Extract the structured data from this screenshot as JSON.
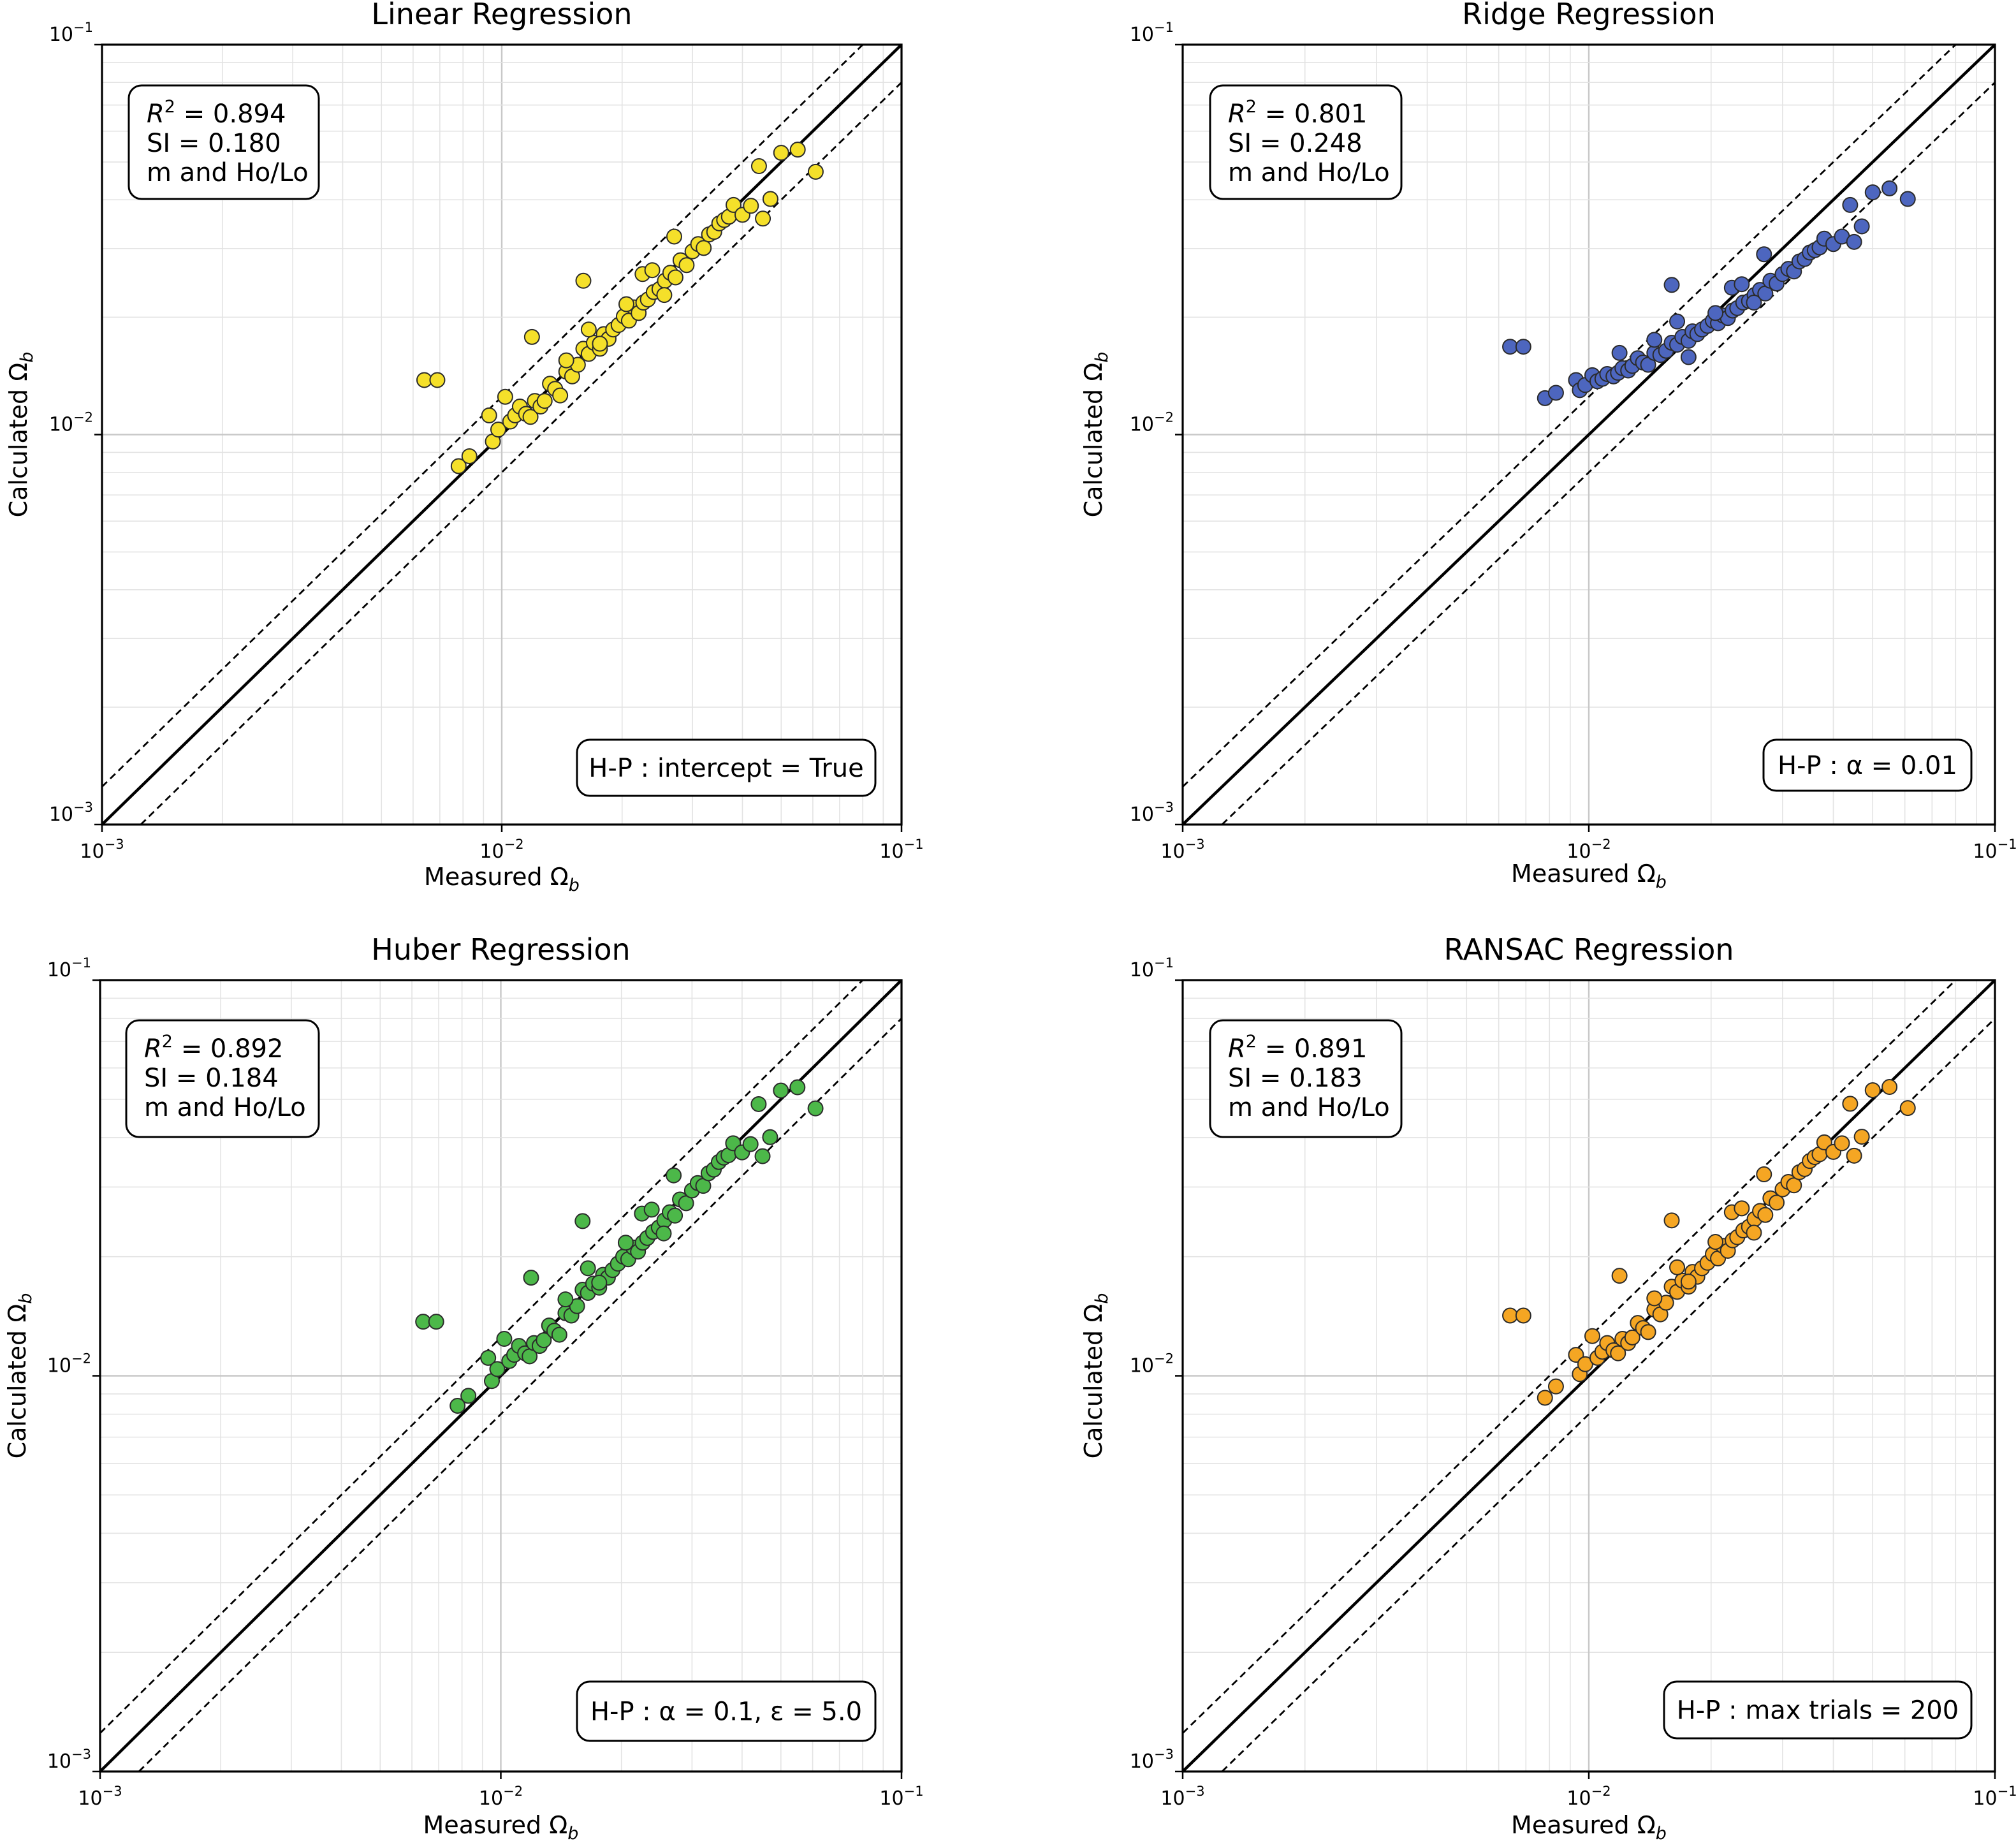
{
  "figure": {
    "x_label": "Measured",
    "y_label": "Calculated",
    "symbol": "Ω",
    "subscript": "b"
  },
  "chart_data": [
    {
      "type": "scatter",
      "title": "Linear Regression",
      "xlabel": "Measured Ωb",
      "ylabel": "Calculated Ωb",
      "xscale": "log",
      "yscale": "log",
      "xlim": [
        0.001,
        0.1
      ],
      "ylim": [
        0.001,
        0.1
      ],
      "x_tick_labels": [
        "10",
        "10",
        "10"
      ],
      "x_tick_exponents": [
        "−3",
        "−2",
        "−1"
      ],
      "y_tick_labels": [
        "10",
        "10",
        "10"
      ],
      "y_tick_exponents": [
        "−3",
        "−2",
        "−1"
      ],
      "grid": "major and minor",
      "reference_lines": [
        "1:1 solid",
        "upper dashed bound",
        "lower dashed bound"
      ],
      "stats": {
        "r2_label": "R",
        "r2_value": "= 0.894",
        "si": "SI  = 0.180",
        "inputs": "m and Ho/Lo"
      },
      "hyperparameter": {
        "prefix": "H-P : ",
        "text": "intercept = True"
      },
      "marker_color": "#f5e02a",
      "x": [
        0.0064,
        0.0069,
        0.0078,
        0.0083,
        0.0093,
        0.0095,
        0.0098,
        0.0102,
        0.0105,
        0.0108,
        0.0111,
        0.0115,
        0.0118,
        0.0121,
        0.0125,
        0.0128,
        0.0132,
        0.0136,
        0.014,
        0.0145,
        0.015,
        0.0155,
        0.016,
        0.0165,
        0.017,
        0.0176,
        0.018,
        0.0185,
        0.019,
        0.0196,
        0.0202,
        0.0208,
        0.0214,
        0.022,
        0.0226,
        0.0232,
        0.024,
        0.0248,
        0.0256,
        0.0264,
        0.0272,
        0.028,
        0.029,
        0.03,
        0.031,
        0.032,
        0.033,
        0.034,
        0.035,
        0.036,
        0.037,
        0.038,
        0.04,
        0.042,
        0.044,
        0.045,
        0.047,
        0.05,
        0.055,
        0.061,
        0.0119,
        0.0145,
        0.016,
        0.0176,
        0.027,
        0.0225,
        0.0205,
        0.0238,
        0.0255,
        0.0165
      ],
      "y": [
        0.0138,
        0.0138,
        0.0083,
        0.0088,
        0.0112,
        0.0096,
        0.0103,
        0.0125,
        0.0108,
        0.0112,
        0.0118,
        0.0113,
        0.0111,
        0.0122,
        0.0118,
        0.0122,
        0.0135,
        0.0131,
        0.0126,
        0.0145,
        0.0141,
        0.0151,
        0.0166,
        0.0161,
        0.0172,
        0.0166,
        0.0181,
        0.0176,
        0.0186,
        0.0191,
        0.0201,
        0.0196,
        0.0212,
        0.0205,
        0.0218,
        0.0222,
        0.0232,
        0.0236,
        0.0248,
        0.026,
        0.0253,
        0.028,
        0.0272,
        0.0295,
        0.0308,
        0.0301,
        0.0326,
        0.0331,
        0.0348,
        0.0355,
        0.0362,
        0.0388,
        0.0366,
        0.0386,
        0.0488,
        0.0358,
        0.0402,
        0.0528,
        0.0538,
        0.0472,
        0.0178,
        0.0155,
        0.0248,
        0.0171,
        0.0322,
        0.0258,
        0.0216,
        0.0264,
        0.0228,
        0.0186
      ]
    },
    {
      "type": "scatter",
      "title": "Ridge Regression",
      "xlabel": "Measured Ωb",
      "ylabel": "Calculated Ωb",
      "xscale": "log",
      "yscale": "log",
      "xlim": [
        0.001,
        0.1
      ],
      "ylim": [
        0.001,
        0.1
      ],
      "x_tick_labels": [
        "10",
        "10",
        "10"
      ],
      "x_tick_exponents": [
        "−3",
        "−2",
        "−1"
      ],
      "y_tick_labels": [
        "10",
        "10",
        "10"
      ],
      "y_tick_exponents": [
        "−3",
        "−2",
        "−1"
      ],
      "grid": "major and minor",
      "reference_lines": [
        "1:1 solid",
        "upper dashed bound",
        "lower dashed bound"
      ],
      "stats": {
        "r2_label": "R",
        "r2_value": "= 0.801",
        "si": "SI  = 0.248",
        "inputs": "m and Ho/Lo"
      },
      "hyperparameter": {
        "prefix": "H-P : ",
        "text": "α = 0.01"
      },
      "marker_color": "#4d66bf",
      "x": [
        0.0064,
        0.0069,
        0.0078,
        0.0083,
        0.0093,
        0.0095,
        0.0098,
        0.0102,
        0.0105,
        0.0108,
        0.0111,
        0.0115,
        0.0118,
        0.0121,
        0.0125,
        0.0128,
        0.0132,
        0.0136,
        0.014,
        0.0145,
        0.015,
        0.0155,
        0.016,
        0.0165,
        0.017,
        0.0176,
        0.018,
        0.0185,
        0.019,
        0.0196,
        0.0202,
        0.0208,
        0.0214,
        0.022,
        0.0226,
        0.0232,
        0.024,
        0.0248,
        0.0256,
        0.0264,
        0.0272,
        0.028,
        0.029,
        0.03,
        0.031,
        0.032,
        0.033,
        0.034,
        0.035,
        0.036,
        0.037,
        0.038,
        0.04,
        0.042,
        0.044,
        0.045,
        0.047,
        0.05,
        0.055,
        0.061,
        0.0119,
        0.0145,
        0.016,
        0.0176,
        0.027,
        0.0225,
        0.0205,
        0.0238,
        0.0255,
        0.0165
      ],
      "y": [
        0.0168,
        0.0168,
        0.0124,
        0.0128,
        0.0138,
        0.013,
        0.0134,
        0.0142,
        0.0137,
        0.0139,
        0.0143,
        0.0141,
        0.0144,
        0.0148,
        0.0146,
        0.015,
        0.0157,
        0.0153,
        0.0151,
        0.0162,
        0.016,
        0.0164,
        0.0172,
        0.017,
        0.0178,
        0.0174,
        0.0184,
        0.0181,
        0.0186,
        0.019,
        0.0196,
        0.0193,
        0.0202,
        0.0199,
        0.0208,
        0.0211,
        0.0218,
        0.022,
        0.0228,
        0.0235,
        0.023,
        0.0248,
        0.0244,
        0.0258,
        0.0266,
        0.0262,
        0.0278,
        0.0282,
        0.0293,
        0.0297,
        0.0302,
        0.0318,
        0.0308,
        0.0322,
        0.0388,
        0.0312,
        0.0342,
        0.0418,
        0.0428,
        0.0402,
        0.0162,
        0.0175,
        0.0242,
        0.0158,
        0.029,
        0.0238,
        0.0205,
        0.0243,
        0.0218,
        0.0195
      ]
    },
    {
      "type": "scatter",
      "title": "Huber Regression",
      "xlabel": "Measured Ωb",
      "ylabel": "Calculated Ωb",
      "xscale": "log",
      "yscale": "log",
      "xlim": [
        0.001,
        0.1
      ],
      "ylim": [
        0.001,
        0.1
      ],
      "x_tick_labels": [
        "10",
        "10",
        "10"
      ],
      "x_tick_exponents": [
        "−3",
        "−2",
        "−1"
      ],
      "y_tick_labels": [
        "10",
        "10",
        "10"
      ],
      "y_tick_exponents": [
        "−3",
        "−2",
        "−1"
      ],
      "grid": "major and minor",
      "reference_lines": [
        "1:1 solid",
        "upper dashed bound",
        "lower dashed bound"
      ],
      "stats": {
        "r2_label": "R",
        "r2_value": "= 0.892",
        "si": "SI  = 0.184",
        "inputs": "m and Ho/Lo"
      },
      "hyperparameter": {
        "prefix": "H-P : ",
        "text": "α = 0.1, ε = 5.0"
      },
      "marker_color": "#4cb849",
      "x": [
        0.0064,
        0.0069,
        0.0078,
        0.0083,
        0.0093,
        0.0095,
        0.0098,
        0.0102,
        0.0105,
        0.0108,
        0.0111,
        0.0115,
        0.0118,
        0.0121,
        0.0125,
        0.0128,
        0.0132,
        0.0136,
        0.014,
        0.0145,
        0.015,
        0.0155,
        0.016,
        0.0165,
        0.017,
        0.0176,
        0.018,
        0.0185,
        0.019,
        0.0196,
        0.0202,
        0.0208,
        0.0214,
        0.022,
        0.0226,
        0.0232,
        0.024,
        0.0248,
        0.0256,
        0.0264,
        0.0272,
        0.028,
        0.029,
        0.03,
        0.031,
        0.032,
        0.033,
        0.034,
        0.035,
        0.036,
        0.037,
        0.038,
        0.04,
        0.042,
        0.044,
        0.045,
        0.047,
        0.05,
        0.055,
        0.061,
        0.0119,
        0.0145,
        0.016,
        0.0176,
        0.027,
        0.0225,
        0.0205,
        0.0238,
        0.0255,
        0.0165
      ],
      "y": [
        0.0137,
        0.0137,
        0.0084,
        0.0089,
        0.0111,
        0.0097,
        0.0104,
        0.0124,
        0.0109,
        0.0113,
        0.0119,
        0.0114,
        0.0112,
        0.0121,
        0.0119,
        0.0123,
        0.0134,
        0.013,
        0.0127,
        0.0144,
        0.0142,
        0.015,
        0.0165,
        0.0162,
        0.0171,
        0.0167,
        0.018,
        0.0177,
        0.0185,
        0.0192,
        0.02,
        0.0197,
        0.0211,
        0.0206,
        0.0217,
        0.0223,
        0.0231,
        0.0237,
        0.0247,
        0.0259,
        0.0254,
        0.0279,
        0.0273,
        0.0294,
        0.0307,
        0.0302,
        0.0325,
        0.0332,
        0.0347,
        0.0356,
        0.0361,
        0.0387,
        0.0367,
        0.0385,
        0.0486,
        0.0359,
        0.0401,
        0.0526,
        0.0536,
        0.0474,
        0.0177,
        0.0156,
        0.0246,
        0.0172,
        0.0321,
        0.0257,
        0.0217,
        0.0263,
        0.0229,
        0.0187
      ]
    },
    {
      "type": "scatter",
      "title": "RANSAC Regression",
      "xlabel": "Measured Ωb",
      "ylabel": "Calculated Ωb",
      "xscale": "log",
      "yscale": "log",
      "xlim": [
        0.001,
        0.1
      ],
      "ylim": [
        0.001,
        0.1
      ],
      "x_tick_labels": [
        "10",
        "10",
        "10"
      ],
      "x_tick_exponents": [
        "−3",
        "−2",
        "−1"
      ],
      "y_tick_labels": [
        "10",
        "10",
        "10"
      ],
      "y_tick_exponents": [
        "−3",
        "−2",
        "−1"
      ],
      "grid": "major and minor",
      "reference_lines": [
        "1:1 solid",
        "upper dashed bound",
        "lower dashed bound"
      ],
      "stats": {
        "r2_label": "R",
        "r2_value": "= 0.891",
        "si": "SI  = 0.183",
        "inputs": "m and Ho/Lo"
      },
      "hyperparameter": {
        "prefix": "H-P : ",
        "text": "max trials = 200"
      },
      "marker_color": "#f5a623",
      "x": [
        0.0064,
        0.0069,
        0.0078,
        0.0083,
        0.0093,
        0.0095,
        0.0098,
        0.0102,
        0.0105,
        0.0108,
        0.0111,
        0.0115,
        0.0118,
        0.0121,
        0.0125,
        0.0128,
        0.0132,
        0.0136,
        0.014,
        0.0145,
        0.015,
        0.0155,
        0.016,
        0.0165,
        0.017,
        0.0176,
        0.018,
        0.0185,
        0.019,
        0.0196,
        0.0202,
        0.0208,
        0.0214,
        0.022,
        0.0226,
        0.0232,
        0.024,
        0.0248,
        0.0256,
        0.0264,
        0.0272,
        0.028,
        0.029,
        0.03,
        0.031,
        0.032,
        0.033,
        0.034,
        0.035,
        0.036,
        0.037,
        0.038,
        0.04,
        0.042,
        0.044,
        0.045,
        0.047,
        0.05,
        0.055,
        0.061,
        0.0119,
        0.0145,
        0.016,
        0.0176,
        0.027,
        0.0225,
        0.0205,
        0.0238,
        0.0255,
        0.0165
      ],
      "y": [
        0.0142,
        0.0142,
        0.0088,
        0.0094,
        0.0113,
        0.0101,
        0.0107,
        0.0126,
        0.0111,
        0.0115,
        0.0121,
        0.0116,
        0.0114,
        0.0124,
        0.0121,
        0.0125,
        0.0136,
        0.0132,
        0.0129,
        0.0147,
        0.0143,
        0.0153,
        0.0168,
        0.0163,
        0.0174,
        0.0168,
        0.0183,
        0.0178,
        0.0187,
        0.0193,
        0.0203,
        0.0198,
        0.0213,
        0.0207,
        0.022,
        0.0224,
        0.0233,
        0.0238,
        0.0249,
        0.0261,
        0.0255,
        0.0281,
        0.0274,
        0.0296,
        0.0309,
        0.0303,
        0.0327,
        0.0333,
        0.0349,
        0.0357,
        0.0363,
        0.0389,
        0.0368,
        0.0387,
        0.0487,
        0.036,
        0.0402,
        0.0527,
        0.0537,
        0.0475,
        0.0179,
        0.0157,
        0.0247,
        0.0173,
        0.0323,
        0.0259,
        0.0218,
        0.0265,
        0.023,
        0.0188
      ]
    }
  ]
}
